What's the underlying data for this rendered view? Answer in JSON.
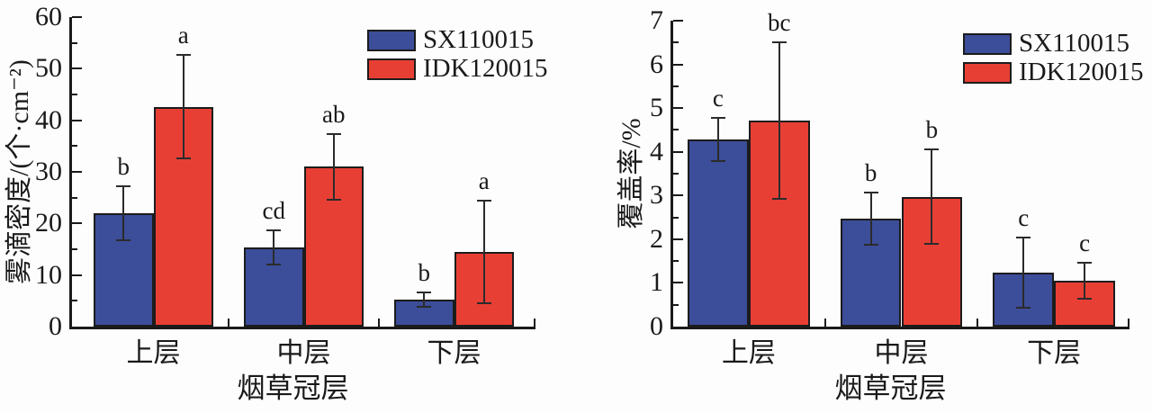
{
  "figure": {
    "background": "#fdfdfd",
    "text_color": "#1a1a1a",
    "bar_border_color": "#1c1c1c",
    "error_bar_color": "#2b2b2b"
  },
  "chart_data": [
    {
      "type": "bar",
      "title": "",
      "xlabel": "烟草冠层",
      "ylabel": "雾滴密度/(个·cm⁻²)",
      "categories": [
        "上层",
        "中层",
        "下层"
      ],
      "ylim": [
        0,
        60
      ],
      "ytick_step": 10,
      "yminor_step": 5,
      "grid": false,
      "legend_position": "top-right",
      "series": [
        {
          "name": "SX110015",
          "color": "#3c4d99",
          "values": [
            22.0,
            15.4,
            5.3
          ],
          "errors": [
            5.2,
            3.3,
            1.4
          ],
          "letters": [
            "b",
            "cd",
            "b"
          ]
        },
        {
          "name": "IDK120015",
          "color": "#e83f35",
          "values": [
            42.6,
            31.0,
            14.5
          ],
          "errors": [
            10.0,
            6.4,
            10.0
          ],
          "letters": [
            "a",
            "ab",
            "a"
          ]
        }
      ]
    },
    {
      "type": "bar",
      "title": "",
      "xlabel": "烟草冠层",
      "ylabel": "覆盖率/%",
      "categories": [
        "上层",
        "中层",
        "下层"
      ],
      "ylim": [
        0,
        7
      ],
      "ytick_step": 1,
      "yminor_step": 0.5,
      "grid": false,
      "legend_position": "top-right",
      "series": [
        {
          "name": "SX110015",
          "color": "#3c4d99",
          "values": [
            4.28,
            2.47,
            1.23
          ],
          "errors": [
            0.5,
            0.6,
            0.8
          ],
          "letters": [
            "c",
            "b",
            "c"
          ]
        },
        {
          "name": "IDK120015",
          "color": "#e83f35",
          "values": [
            4.72,
            2.97,
            1.05
          ],
          "errors": [
            1.79,
            1.08,
            0.41
          ],
          "letters": [
            "bc",
            "b",
            "c"
          ]
        }
      ]
    }
  ]
}
